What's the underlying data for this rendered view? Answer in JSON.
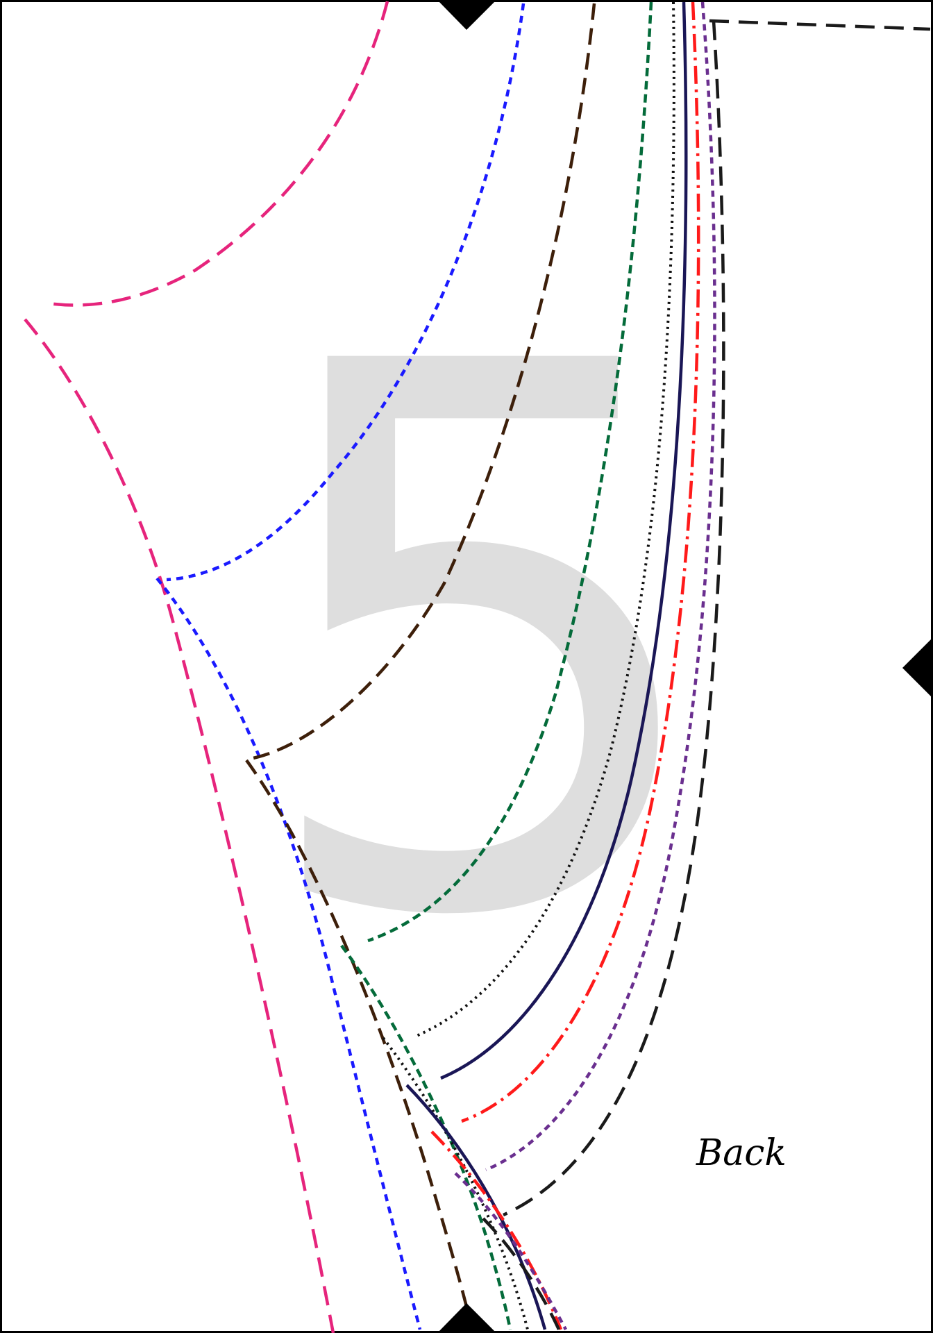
{
  "sheet": {
    "page_number": "5",
    "piece_label": "Back"
  },
  "colors": {
    "page_number_fill": "#dedede",
    "border": "#000000",
    "notch": "#000000",
    "label_text": "#000000",
    "size_lines": {
      "pink": "#e6247c",
      "blue": "#1a1aff",
      "brown": "#3d1f0a",
      "green": "#046b3a",
      "dotted_black": "#111111",
      "navy": "#1a1656",
      "red": "#ff1a1a",
      "purple": "#6a2f8f",
      "black_dashed": "#1a1a1a"
    }
  },
  "icons": [
    "notch-marker-icon"
  ]
}
